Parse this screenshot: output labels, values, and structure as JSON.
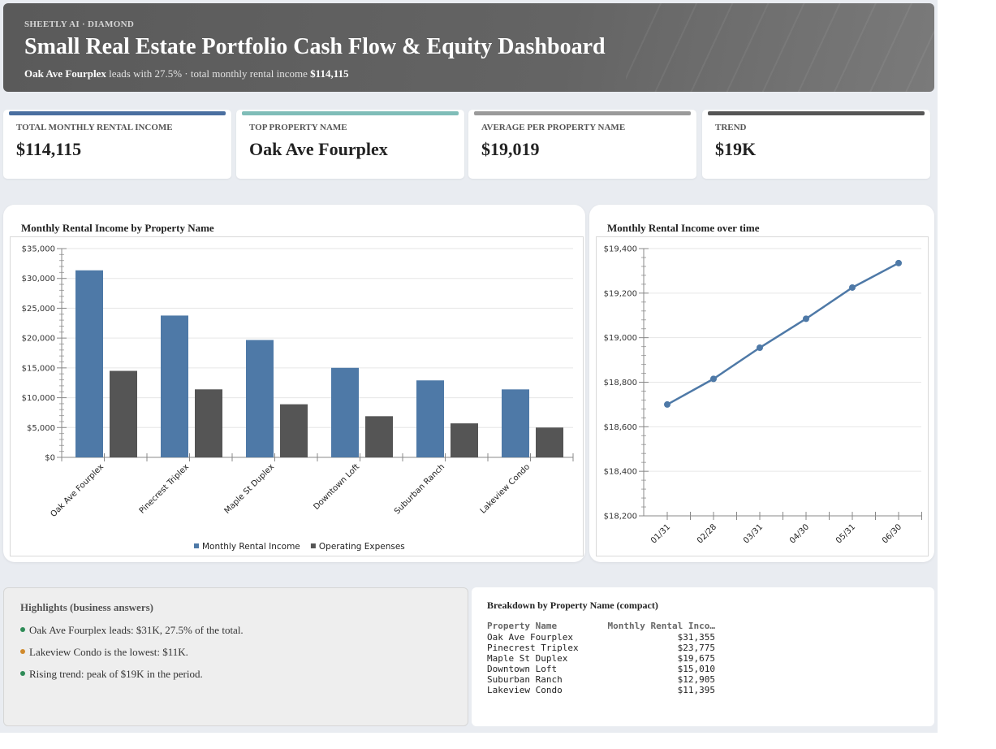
{
  "header": {
    "brand": "SHEETLY AI · DIAMOND",
    "title": "Small Real Estate Portfolio Cash Flow & Equity Dashboard",
    "subtitle_lead": "Oak Ave Fourplex",
    "subtitle_mid": " leads with 27.5% · total monthly rental income ",
    "subtitle_total": "$114,115"
  },
  "kpis": [
    {
      "label": "TOTAL MONTHLY RENTAL INCOME",
      "value": "$114,115",
      "color": "#4a6fa0"
    },
    {
      "label": "TOP PROPERTY NAME",
      "value": "Oak Ave Fourplex",
      "color": "#7fbdb8"
    },
    {
      "label": "AVERAGE PER PROPERTY NAME",
      "value": "$19,019",
      "color": "#9a9a9a"
    },
    {
      "label": "TREND",
      "value": "$19K",
      "color": "#555555"
    }
  ],
  "bar_chart_title": "Monthly Rental Income by Property Name",
  "line_chart_title": "Monthly Rental Income over time",
  "chart_data": [
    {
      "type": "bar",
      "categories": [
        "Oak Ave Fourplex",
        "Pinecrest Triplex",
        "Maple St Duplex",
        "Downtown Loft",
        "Suburban Ranch",
        "Lakeview Condo"
      ],
      "series": [
        {
          "name": "Monthly Rental Income",
          "values": [
            31355,
            23775,
            19675,
            15010,
            12905,
            11395
          ],
          "color": "#4e79a7"
        },
        {
          "name": "Operating Expenses",
          "values": [
            14500,
            11400,
            8900,
            6900,
            5700,
            5000
          ],
          "color": "#555555"
        }
      ],
      "yticks": [
        "$0",
        "$5,000",
        "$10,000",
        "$15,000",
        "$20,000",
        "$25,000",
        "$30,000",
        "$35,000"
      ],
      "ylim": [
        0,
        35000
      ],
      "grid": true,
      "legend": "bottom"
    },
    {
      "type": "line",
      "x": [
        "01/31",
        "02/28",
        "03/31",
        "04/30",
        "05/31",
        "06/30"
      ],
      "series": [
        {
          "values": [
            18700,
            18815,
            18955,
            19085,
            19225,
            19335
          ],
          "color": "#4e79a7"
        }
      ],
      "yticks": [
        "$18,200",
        "$18,400",
        "$18,600",
        "$18,800",
        "$19,000",
        "$19,200",
        "$19,400"
      ],
      "ylim": [
        18200,
        19400
      ],
      "grid": true
    }
  ],
  "highlights": {
    "title": "Highlights (business answers)",
    "items": [
      {
        "text": "Oak Ave Fourplex leads: $31K, 27.5% of the total.",
        "color": "#2e8b57"
      },
      {
        "text": "Lakeview Condo is the lowest: $11K.",
        "color": "#d08a2c"
      },
      {
        "text": "Rising trend: peak of $19K in the period.",
        "color": "#2e8b57"
      }
    ]
  },
  "breakdown": {
    "title": "Breakdown by Property Name (compact)",
    "col1": "Property Name",
    "col2": "Monthly Rental Inco…",
    "rows": [
      {
        "name": "Oak Ave Fourplex",
        "value": "$31,355"
      },
      {
        "name": "Pinecrest Triplex",
        "value": "$23,775"
      },
      {
        "name": "Maple St Duplex",
        "value": "$19,675"
      },
      {
        "name": "Downtown Loft",
        "value": "$15,010"
      },
      {
        "name": "Suburban Ranch",
        "value": "$12,905"
      },
      {
        "name": "Lakeview Condo",
        "value": "$11,395"
      }
    ]
  }
}
